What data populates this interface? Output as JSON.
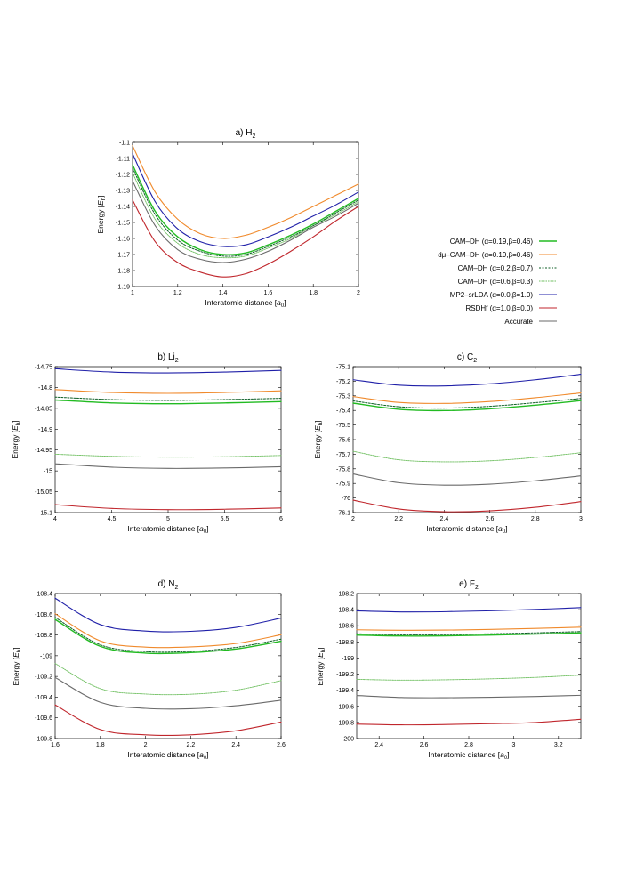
{
  "series_defs": [
    {
      "key": "camdh_046",
      "name": "CAM–DH (α=0.19,β=0.46)",
      "color": "#22bb22",
      "dash": "",
      "width": 1.4
    },
    {
      "key": "dmu_camdh",
      "name": "dμ–CAM–DH (α=0.19,β=0.46)",
      "color": "#f08a2c",
      "dash": "",
      "width": 1.1
    },
    {
      "key": "camdh_07",
      "name": "CAM–DH (α=0.2,β=0.7)",
      "color": "#0c5e24",
      "dash": "2,1.5",
      "width": 1.0
    },
    {
      "key": "camdh_03",
      "name": "CAM–DH (α=0.6,β=0.3)",
      "color": "#6fbf60",
      "dash": "1.5,1",
      "width": 0.9
    },
    {
      "key": "mp2_srlda",
      "name": "MP2–srLDA (α=0.0,β=1.0)",
      "color": "#1f1fa8",
      "dash": "",
      "width": 1.1
    },
    {
      "key": "rsdhf",
      "name": "RSDHf (α=1.0,β=0.0)",
      "color": "#c0262c",
      "dash": "",
      "width": 1.1
    },
    {
      "key": "accurate",
      "name": "Accurate",
      "color": "#6a6a6a",
      "dash": "",
      "width": 1.1
    }
  ],
  "chart_data": [
    {
      "id": "h2",
      "type": "line",
      "title_prefix": "a) H",
      "title_sub": "2",
      "xlabel_text": "Interatomic distance [",
      "xlabel_unit": "a",
      "xlabel_unit_sub": "0",
      "xlabel_close": "]",
      "ylabel_text": "Energy [",
      "ylabel_unit": "E",
      "ylabel_unit_sub": "h",
      "ylabel_close": "]",
      "xlim": [
        1,
        2
      ],
      "ylim": [
        -1.19,
        -1.1
      ],
      "xticks": [
        "1",
        "1.2",
        "1.4",
        "1.6",
        "1.8",
        "2"
      ],
      "yticks": [
        "-1.1",
        "-1.11",
        "-1.12",
        "-1.13",
        "-1.14",
        "-1.15",
        "-1.16",
        "-1.17",
        "-1.18",
        "-1.19"
      ],
      "x": [
        1.0,
        1.1,
        1.2,
        1.3,
        1.4,
        1.5,
        1.6,
        1.7,
        1.8,
        1.9,
        2.0
      ],
      "series": {
        "dmu_camdh": [
          -1.102,
          -1.131,
          -1.148,
          -1.157,
          -1.16,
          -1.158,
          -1.153,
          -1.147,
          -1.14,
          -1.133,
          -1.126
        ],
        "mp2_srlda": [
          -1.107,
          -1.137,
          -1.154,
          -1.162,
          -1.165,
          -1.164,
          -1.159,
          -1.153,
          -1.146,
          -1.139,
          -1.131
        ],
        "camdh_046": [
          -1.114,
          -1.143,
          -1.159,
          -1.167,
          -1.17,
          -1.169,
          -1.164,
          -1.158,
          -1.151,
          -1.143,
          -1.135
        ],
        "camdh_07": [
          -1.116,
          -1.145,
          -1.161,
          -1.168,
          -1.171,
          -1.17,
          -1.165,
          -1.159,
          -1.152,
          -1.144,
          -1.136
        ],
        "camdh_03": [
          -1.119,
          -1.148,
          -1.163,
          -1.17,
          -1.172,
          -1.171,
          -1.166,
          -1.16,
          -1.152,
          -1.145,
          -1.137
        ],
        "accurate": [
          -1.124,
          -1.152,
          -1.167,
          -1.173,
          -1.175,
          -1.173,
          -1.168,
          -1.161,
          -1.153,
          -1.146,
          -1.138
        ],
        "rsdhf": [
          -1.136,
          -1.162,
          -1.175,
          -1.181,
          -1.184,
          -1.182,
          -1.176,
          -1.168,
          -1.159,
          -1.149,
          -1.14
        ]
      }
    },
    {
      "id": "li2",
      "type": "line",
      "title_prefix": "b) Li",
      "title_sub": "2",
      "xlabel_text": "Interatomic distance [",
      "xlabel_unit": "a",
      "xlabel_unit_sub": "0",
      "xlabel_close": "]",
      "ylabel_text": "Energy [",
      "ylabel_unit": "E",
      "ylabel_unit_sub": "h",
      "ylabel_close": "]",
      "xlim": [
        4,
        6
      ],
      "ylim": [
        -15.1,
        -14.75
      ],
      "xticks": [
        "4",
        "4.5",
        "5",
        "5.5",
        "6"
      ],
      "yticks": [
        "-14.75",
        "-14.8",
        "-14.85",
        "-14.9",
        "-14.95",
        "-15",
        "-15.05",
        "-15.1"
      ],
      "x": [
        4.0,
        4.5,
        5.0,
        5.5,
        6.0
      ],
      "series": {
        "mp2_srlda": [
          -14.755,
          -14.763,
          -14.765,
          -14.763,
          -14.759
        ],
        "dmu_camdh": [
          -14.805,
          -14.812,
          -14.814,
          -14.812,
          -14.808
        ],
        "camdh_07": [
          -14.823,
          -14.829,
          -14.831,
          -14.829,
          -14.826
        ],
        "camdh_046": [
          -14.83,
          -14.837,
          -14.839,
          -14.837,
          -14.834
        ],
        "camdh_03": [
          -14.96,
          -14.965,
          -14.967,
          -14.966,
          -14.963
        ],
        "accurate": [
          -14.983,
          -14.991,
          -14.994,
          -14.993,
          -14.99
        ],
        "rsdhf": [
          -15.081,
          -15.09,
          -15.093,
          -15.092,
          -15.089
        ]
      }
    },
    {
      "id": "c2",
      "type": "line",
      "title_prefix": "c) C",
      "title_sub": "2",
      "xlabel_text": "Interatomic distance [",
      "xlabel_unit": "a",
      "xlabel_unit_sub": "0",
      "xlabel_close": "]",
      "ylabel_text": "Energy [",
      "ylabel_unit": "E",
      "ylabel_unit_sub": "h",
      "ylabel_close": "]",
      "xlim": [
        2,
        3
      ],
      "ylim": [
        -76.1,
        -75.1
      ],
      "xticks": [
        "2",
        "2.2",
        "2.4",
        "2.6",
        "2.8",
        "3"
      ],
      "yticks": [
        "-75.1",
        "-75.2",
        "-75.3",
        "-75.4",
        "-75.5",
        "-75.6",
        "-75.7",
        "-75.8",
        "-75.9",
        "-76",
        "-76.1"
      ],
      "x": [
        2.0,
        2.2,
        2.4,
        2.6,
        2.8,
        3.0
      ],
      "series": {
        "mp2_srlda": [
          -75.19,
          -75.227,
          -75.232,
          -75.218,
          -75.19,
          -75.152
        ],
        "dmu_camdh": [
          -75.305,
          -75.345,
          -75.352,
          -75.339,
          -75.313,
          -75.28
        ],
        "camdh_07": [
          -75.335,
          -75.375,
          -75.384,
          -75.372,
          -75.347,
          -75.318
        ],
        "camdh_046": [
          -75.35,
          -75.392,
          -75.401,
          -75.389,
          -75.364,
          -75.333
        ],
        "camdh_03": [
          -75.68,
          -75.738,
          -75.752,
          -75.745,
          -75.722,
          -75.69
        ],
        "accurate": [
          -75.835,
          -75.895,
          -75.912,
          -75.905,
          -75.882,
          -75.848
        ],
        "rsdhf": [
          -76.015,
          -76.075,
          -76.094,
          -76.088,
          -76.064,
          -76.025
        ]
      }
    },
    {
      "id": "n2",
      "type": "line",
      "title_prefix": "d) N",
      "title_sub": "2",
      "xlabel_text": "Interatomic distance [",
      "xlabel_unit": "a",
      "xlabel_unit_sub": "0",
      "xlabel_close": "]",
      "ylabel_text": "Energy [",
      "ylabel_unit": "E",
      "ylabel_unit_sub": "h",
      "ylabel_close": "]",
      "xlim": [
        1.6,
        2.6
      ],
      "ylim": [
        -109.8,
        -108.4
      ],
      "xticks": [
        "1.6",
        "1.8",
        "2",
        "2.2",
        "2.4",
        "2.6"
      ],
      "yticks": [
        "-108.4",
        "-108.6",
        "-108.8",
        "-109",
        "-109.2",
        "-109.4",
        "-109.6",
        "-109.8"
      ],
      "x": [
        1.6,
        1.8,
        2.0,
        2.2,
        2.4,
        2.6
      ],
      "series": {
        "mp2_srlda": [
          -108.445,
          -108.7,
          -108.762,
          -108.765,
          -108.727,
          -108.637
        ],
        "dmu_camdh": [
          -108.595,
          -108.857,
          -108.917,
          -108.915,
          -108.882,
          -108.798
        ],
        "camdh_07": [
          -108.63,
          -108.895,
          -108.96,
          -108.958,
          -108.92,
          -108.84
        ],
        "camdh_046": [
          -108.65,
          -108.91,
          -108.975,
          -108.97,
          -108.935,
          -108.86
        ],
        "camdh_03": [
          -109.075,
          -109.318,
          -109.37,
          -109.372,
          -109.333,
          -109.24
        ],
        "accurate": [
          -109.21,
          -109.45,
          -109.508,
          -109.512,
          -109.483,
          -109.43
        ],
        "rsdhf": [
          -109.475,
          -109.713,
          -109.764,
          -109.764,
          -109.725,
          -109.64
        ]
      }
    },
    {
      "id": "f2",
      "type": "line",
      "title_prefix": "e) F",
      "title_sub": "2",
      "xlabel_text": "Interatomic distance [",
      "xlabel_unit": "a",
      "xlabel_unit_sub": "0",
      "xlabel_close": "]",
      "ylabel_text": "Energy [",
      "ylabel_unit": "E",
      "ylabel_unit_sub": "h",
      "ylabel_close": "]",
      "xlim": [
        2.3,
        3.3
      ],
      "ylim": [
        -200,
        -198.2
      ],
      "xticks": [
        "2.4",
        "2.6",
        "2.8",
        "3",
        "3.2"
      ],
      "xtick_values": [
        2.4,
        2.6,
        2.8,
        3.0,
        3.2
      ],
      "yticks": [
        "-198.2",
        "-198.4",
        "-198.6",
        "-198.8",
        "-199",
        "-199.2",
        "-199.4",
        "-199.6",
        "-199.8",
        "-200"
      ],
      "x": [
        2.3,
        2.5,
        2.7,
        2.9,
        3.1,
        3.3
      ],
      "series": {
        "mp2_srlda": [
          -198.415,
          -198.428,
          -198.425,
          -198.414,
          -198.397,
          -198.375
        ],
        "dmu_camdh": [
          -198.65,
          -198.656,
          -198.654,
          -198.645,
          -198.633,
          -198.618
        ],
        "camdh_07": [
          -198.7,
          -198.712,
          -198.71,
          -198.7,
          -198.688,
          -198.672
        ],
        "camdh_046": [
          -198.715,
          -198.727,
          -198.725,
          -198.716,
          -198.703,
          -198.688
        ],
        "camdh_03": [
          -199.265,
          -199.275,
          -199.27,
          -199.258,
          -199.24,
          -199.212
        ],
        "accurate": [
          -199.465,
          -199.49,
          -199.493,
          -199.487,
          -199.477,
          -199.463
        ],
        "rsdhf": [
          -199.82,
          -199.83,
          -199.825,
          -199.815,
          -199.8,
          -199.76
        ]
      }
    }
  ]
}
